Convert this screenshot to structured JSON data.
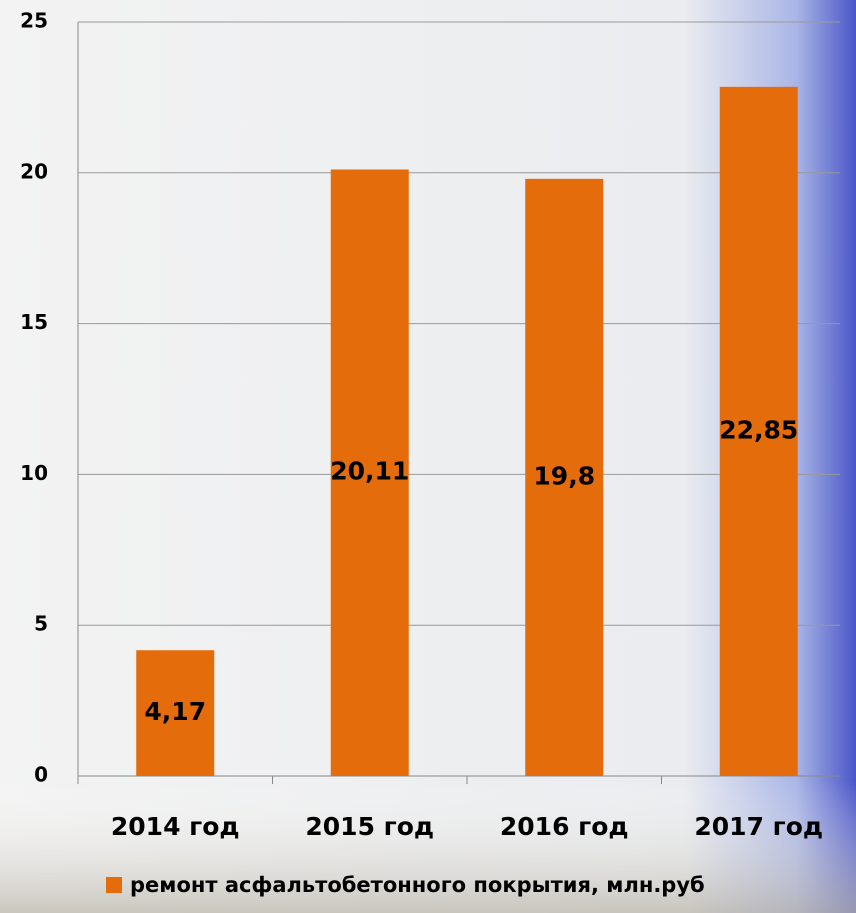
{
  "chart_data": {
    "type": "bar",
    "categories": [
      "2014 год",
      "2015 год",
      "2016 год",
      "2017 год"
    ],
    "series": [
      {
        "name": "ремонт асфальтобетонного покрытия,  млн.руб",
        "color": "#e46c0a",
        "values": [
          4.17,
          20.11,
          19.8,
          22.85
        ],
        "value_labels": [
          "4,17",
          "20,11",
          "19,8",
          "22,85"
        ]
      }
    ],
    "ylim": [
      0,
      25
    ],
    "yticks": [
      0,
      5,
      10,
      15,
      20,
      25
    ],
    "grid": true,
    "legend": "bottom"
  }
}
